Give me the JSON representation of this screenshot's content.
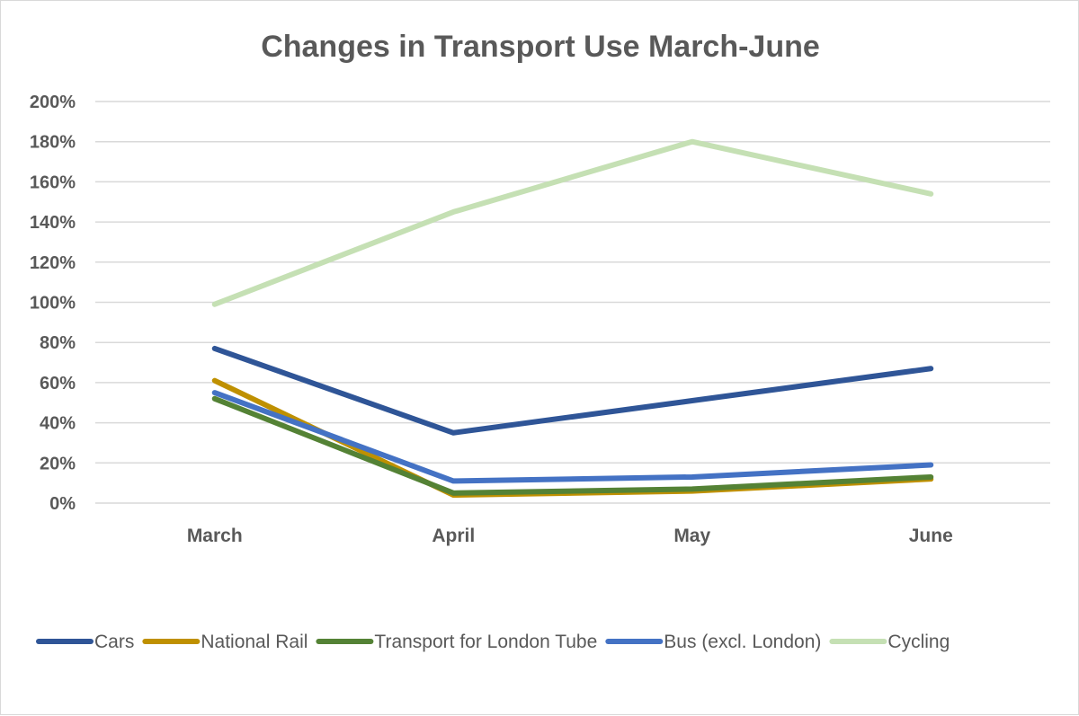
{
  "chart_data": {
    "type": "line",
    "title": "Changes in Transport Use March-June",
    "xlabel": "",
    "ylabel": "",
    "categories": [
      "March",
      "April",
      "May",
      "June"
    ],
    "y_ticks": [
      "0%",
      "20%",
      "40%",
      "60%",
      "80%",
      "100%",
      "120%",
      "140%",
      "160%",
      "180%",
      "200%"
    ],
    "ylim": [
      0,
      200
    ],
    "y_unit": "percent",
    "grid": true,
    "legend_position": "bottom",
    "series": [
      {
        "name": "Cars",
        "color": "#2f5597",
        "values": [
          77,
          35,
          51,
          67
        ]
      },
      {
        "name": "National Rail",
        "color": "#bf9000",
        "values": [
          61,
          4,
          6,
          12
        ]
      },
      {
        "name": "Transport for London Tube",
        "color": "#548235",
        "values": [
          52,
          5,
          7,
          13
        ]
      },
      {
        "name": "Bus (excl. London)",
        "color": "#4472c4",
        "values": [
          55,
          11,
          13,
          19
        ]
      },
      {
        "name": "Cycling",
        "color": "#c5e0b4",
        "values": [
          99,
          145,
          180,
          154
        ]
      }
    ]
  }
}
